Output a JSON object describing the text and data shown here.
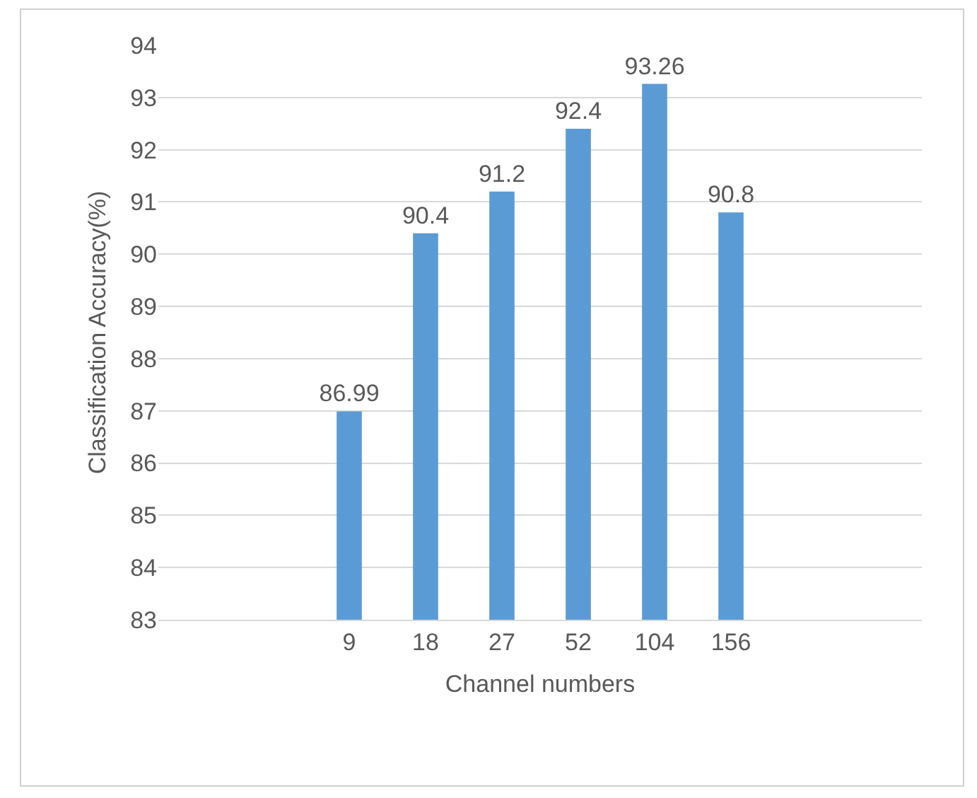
{
  "chart_data": {
    "type": "bar",
    "xlabel": "Channel numbers",
    "ylabel": "Classification Accuracy(%)",
    "categories": [
      null,
      null,
      "9",
      "18",
      "27",
      "52",
      "104",
      "156",
      null,
      null
    ],
    "values": [
      null,
      null,
      86.99,
      90.4,
      91.2,
      92.4,
      93.26,
      90.8,
      null,
      null
    ],
    "color": "#5b9bd5",
    "ylim": [
      83,
      94
    ],
    "yticks": [
      83,
      84,
      85,
      86,
      87,
      88,
      89,
      90,
      91,
      92,
      93,
      94
    ],
    "grid": "y",
    "data_labels": true,
    "legend": false
  }
}
